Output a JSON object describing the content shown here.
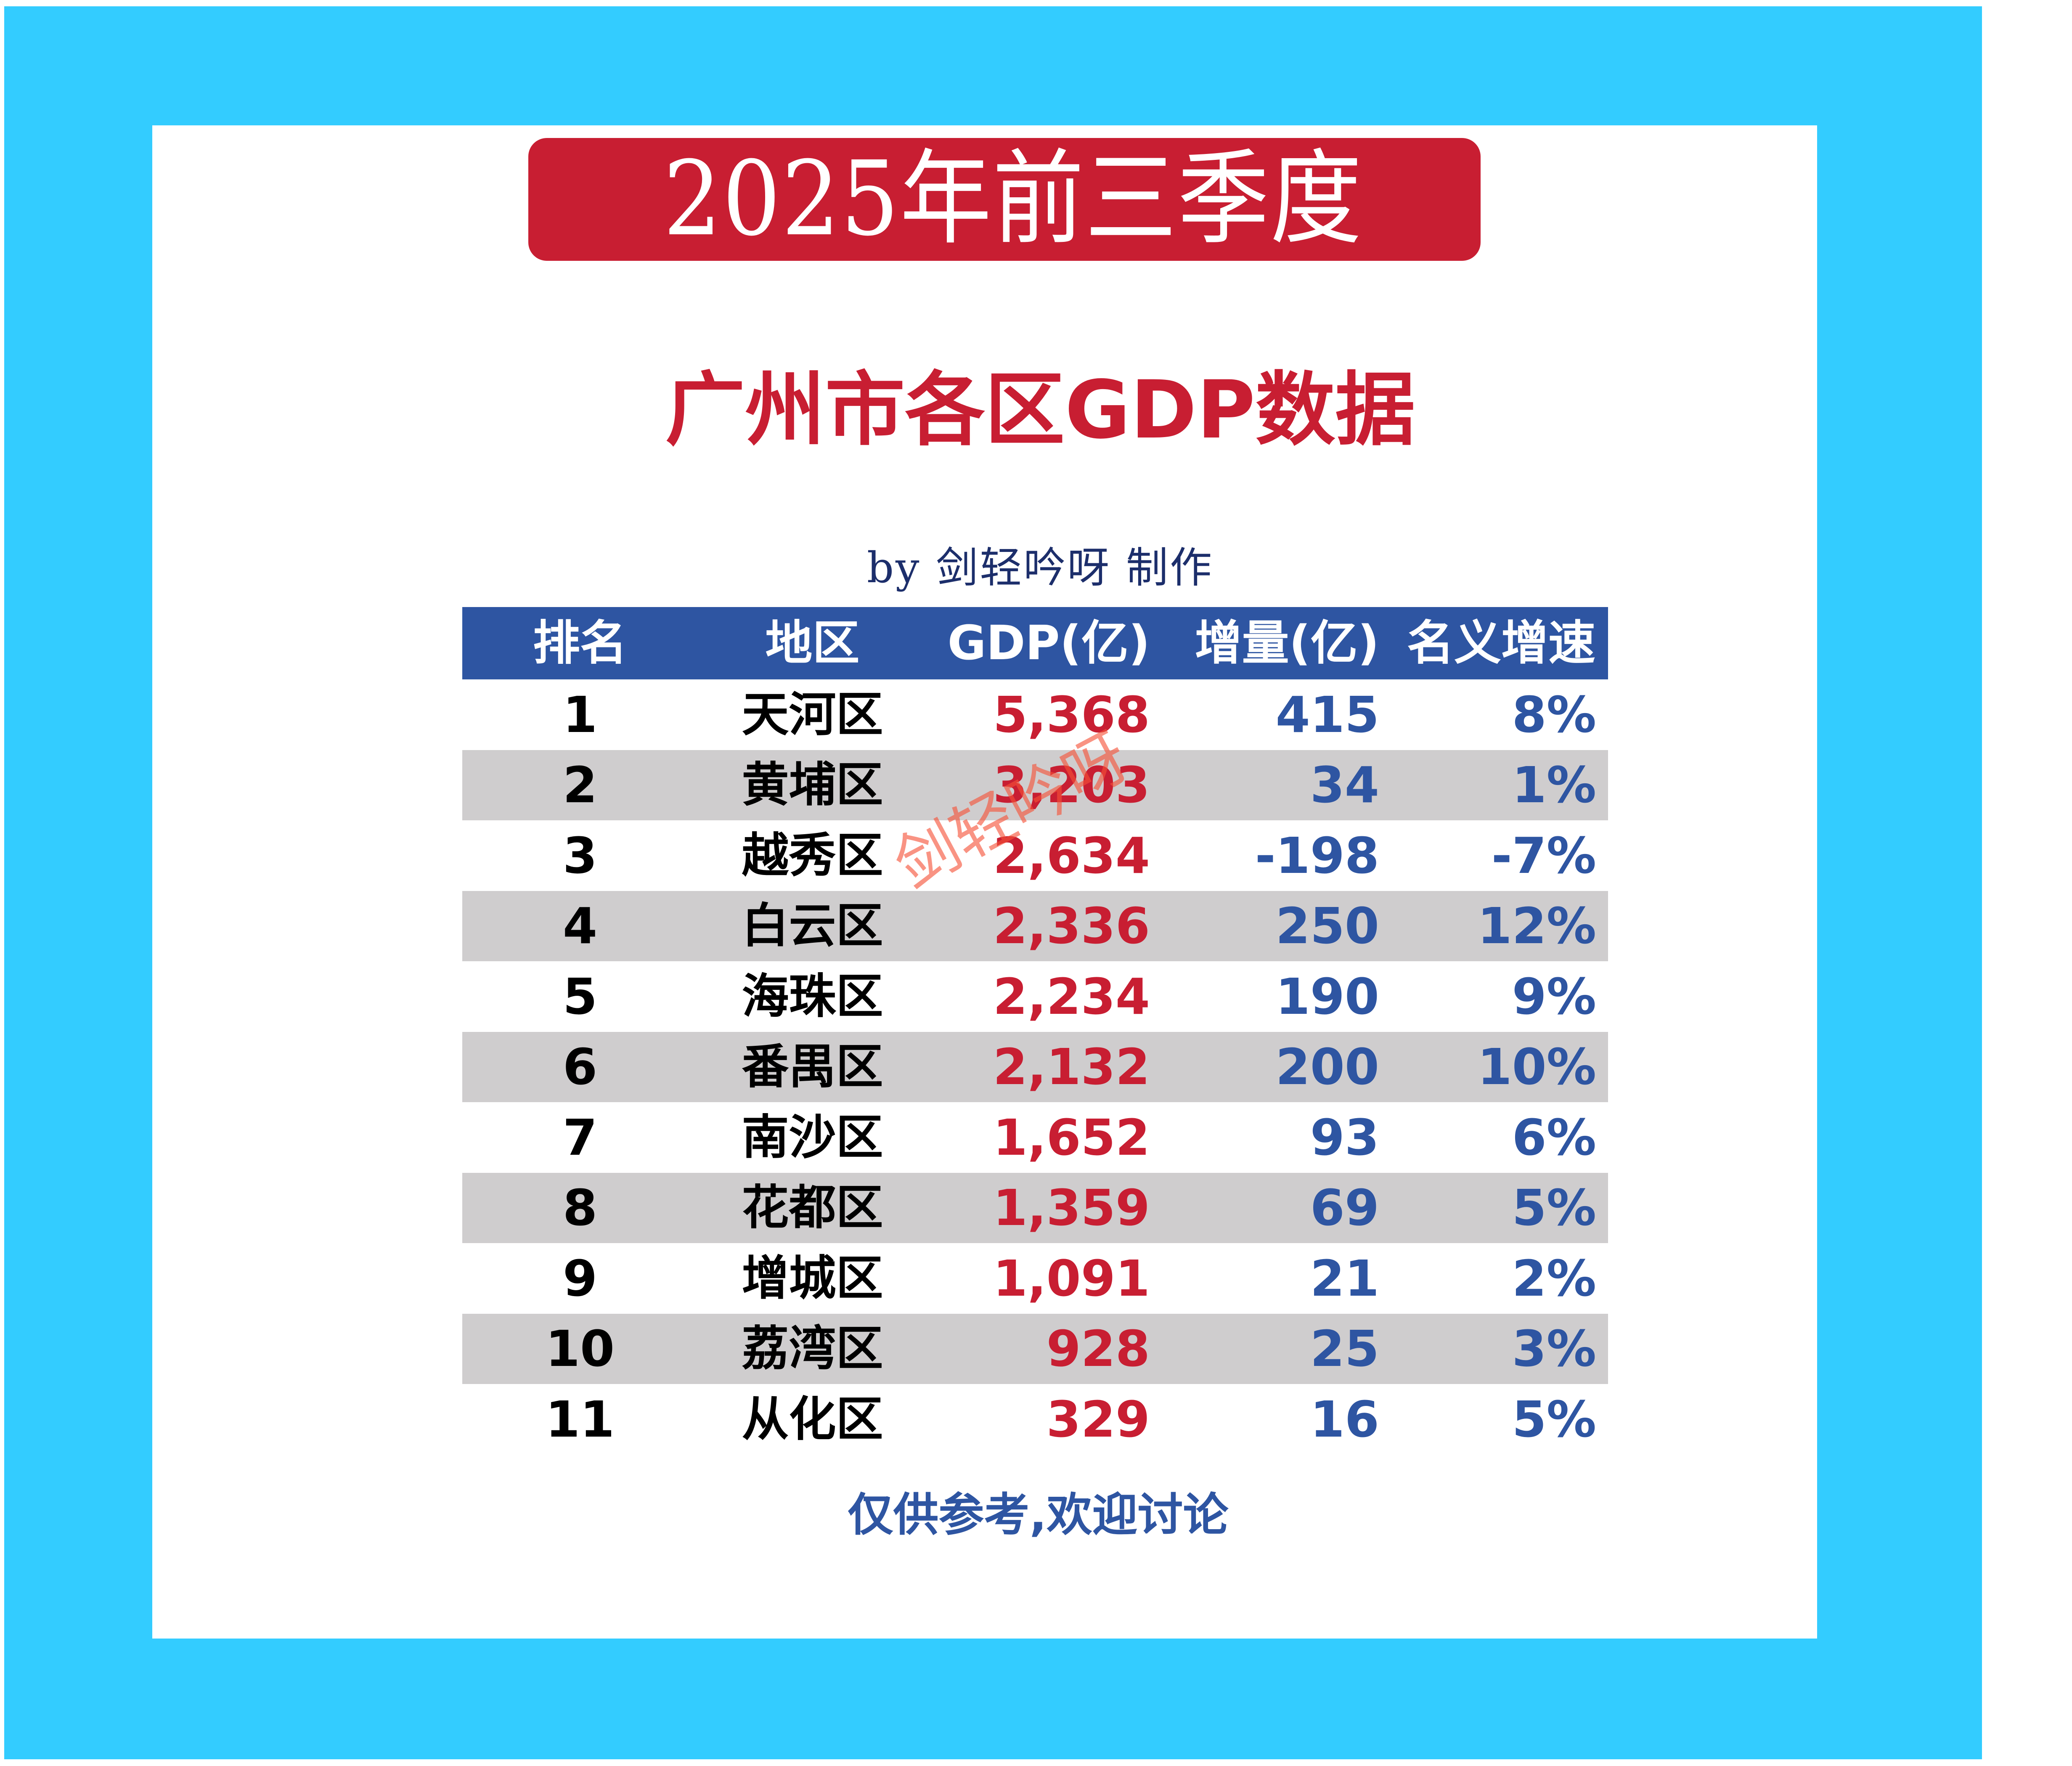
{
  "colors": {
    "frame": "#33CCFF",
    "banner": "#C81E32",
    "title": "#C81E32",
    "header_bg": "#2E55A2",
    "alt_row_bg": "#CFCDCE",
    "gdp_text": "#C81E32",
    "metric_text": "#2E55A2",
    "byline_text": "#1C2E6B"
  },
  "banner": {
    "text": "2025年前三季度"
  },
  "title": "广州市各区GDP数据",
  "byline": "by 剑轻吟呀 制作",
  "watermark": "剑轻吟呀",
  "table": {
    "headers": [
      "排名",
      "地区",
      "GDP(亿)",
      "增量(亿)",
      "名义增速"
    ],
    "rows": [
      {
        "rank": "1",
        "district": "天河区",
        "gdp": "5,368",
        "increase": "415",
        "growth": "8%"
      },
      {
        "rank": "2",
        "district": "黄埔区",
        "gdp": "3,203",
        "increase": "34",
        "growth": "1%"
      },
      {
        "rank": "3",
        "district": "越秀区",
        "gdp": "2,634",
        "increase": "-198",
        "growth": "-7%"
      },
      {
        "rank": "4",
        "district": "白云区",
        "gdp": "2,336",
        "increase": "250",
        "growth": "12%"
      },
      {
        "rank": "5",
        "district": "海珠区",
        "gdp": "2,234",
        "increase": "190",
        "growth": "9%"
      },
      {
        "rank": "6",
        "district": "番禺区",
        "gdp": "2,132",
        "increase": "200",
        "growth": "10%"
      },
      {
        "rank": "7",
        "district": "南沙区",
        "gdp": "1,652",
        "increase": "93",
        "growth": "6%"
      },
      {
        "rank": "8",
        "district": "花都区",
        "gdp": "1,359",
        "increase": "69",
        "growth": "5%"
      },
      {
        "rank": "9",
        "district": "增城区",
        "gdp": "1,091",
        "increase": "21",
        "growth": "2%"
      },
      {
        "rank": "10",
        "district": "荔湾区",
        "gdp": "928",
        "increase": "25",
        "growth": "3%"
      },
      {
        "rank": "11",
        "district": "从化区",
        "gdp": "329",
        "increase": "16",
        "growth": "5%"
      }
    ]
  },
  "footer": "仅供参考,欢迎讨论"
}
